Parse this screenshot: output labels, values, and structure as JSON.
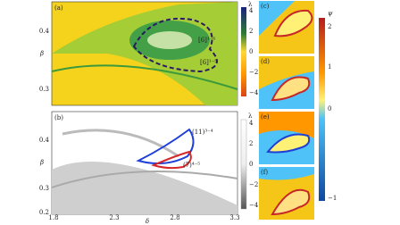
{
  "panels": {
    "a": "(a)",
    "b": "(b)",
    "c": "(c)",
    "d": "(d)",
    "e": "(e)",
    "f": "(f)"
  },
  "axes": {
    "x_label": "δ",
    "y_label_a": "β",
    "y_label_b": "β",
    "x_ticks": [
      "1.8",
      "2.3",
      "2.8",
      "3.3"
    ],
    "a_y_ticks": [
      "0.4",
      "0.3"
    ],
    "b_y_ticks": [
      "0.4",
      "0.3",
      "0.2"
    ]
  },
  "colorbars": {
    "lambda_label": "λ",
    "lambda_ticks": [
      "4",
      "2",
      "0",
      "−2",
      "−4"
    ],
    "grey_label": "λ",
    "grey_ticks": [
      "4",
      "2",
      "0",
      "−2",
      "−4"
    ],
    "psi_label": "ψ",
    "psi_ticks": [
      "2",
      "1",
      "0",
      "−1"
    ]
  },
  "annotations": {
    "a_top": "[6]¹⁻⁶",
    "a_bottom": "[6]¹⁻⁵",
    "b_blue": "(11)³⁻⁴",
    "b_red": "(7)⁴⁻⁵"
  }
}
